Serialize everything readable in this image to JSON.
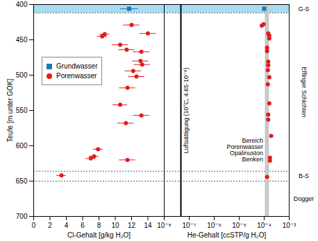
{
  "chart_data": [
    {
      "type": "scatter",
      "x_label": "Cl-Gehalt [g/kg H₂O]",
      "y_label": "Teufe [m unter GOK]",
      "xlim": [
        0,
        16
      ],
      "xticks": [
        0,
        2,
        4,
        6,
        8,
        10,
        12,
        14
      ],
      "ylim": [
        400,
        700
      ],
      "yticks": [
        400,
        450,
        500,
        550,
        600,
        650,
        700
      ],
      "legend": "upper left",
      "series": [
        {
          "name": "Grundwasser",
          "color": "#1f78b4",
          "marker": "square",
          "x": [
            11.7
          ],
          "y": [
            406
          ],
          "xerr": [
            1.1
          ]
        },
        {
          "name": "Porenwasser",
          "color": "#e31a1c",
          "marker": "circle",
          "x": [
            12.0,
            14.0,
            8.7,
            8.4,
            10.6,
            11.4,
            13.2,
            13.1,
            13.3,
            12.2,
            12.6,
            11.5,
            10.6,
            13.2,
            11.3,
            7.9,
            7.4,
            7.0,
            11.5,
            3.4
          ],
          "y": [
            429,
            441,
            442,
            445,
            457,
            464,
            467,
            480,
            485,
            494,
            502,
            518,
            542,
            557,
            568,
            605,
            615,
            618,
            620,
            642
          ],
          "xerr": [
            1.0,
            1.0,
            0.6,
            0.6,
            1.0,
            1.0,
            1.0,
            1.0,
            1.0,
            1.0,
            1.0,
            1.0,
            0.9,
            1.0,
            1.0,
            0.6,
            0.6,
            0.6,
            1.0,
            0.6
          ]
        }
      ]
    },
    {
      "type": "scatter",
      "x_label": "He-Gehalt [ccSTP/g H₂O]",
      "log": "x",
      "xlim": [
        1e-08,
        0.001
      ],
      "xticks": [
        {
          "value": 1e-08,
          "label": "10⁻⁸"
        },
        {
          "value": 1e-07,
          "label": "10⁻⁷"
        },
        {
          "value": 1e-06,
          "label": "10⁻⁶"
        },
        {
          "value": 1e-05,
          "label": "10⁻⁵"
        },
        {
          "value": 0.0001,
          "label": "10⁻⁴"
        },
        {
          "value": 0.001,
          "label": "10⁻³"
        }
      ],
      "ylim": [
        400,
        700
      ],
      "tick_labels": "x",
      "series": [
        {
          "name": "Grundwasser",
          "color": "#1f78b4",
          "marker": "square",
          "x": [
            0.0001
          ],
          "y": [
            406
          ]
        },
        {
          "name": "Porenwasser",
          "color": "#e31a1c",
          "marker": "circle",
          "x": [
            8e-05,
            9.5e-05,
            0.000145,
            0.00016,
            0.00016,
            0.00013,
            0.00013,
            0.000145,
            0.000145,
            0.00014,
            0.00016,
            0.00014,
            0.00016,
            0.000145,
            0.000145,
            0.00019,
            0.00017,
            0.00017,
            0.00013
          ],
          "y": [
            430,
            428,
            441,
            444,
            448,
            461,
            466,
            481,
            486,
            493,
            503,
            513,
            540,
            556,
            563,
            586,
            617,
            621,
            644
          ]
        }
      ],
      "air_saturation": {
        "value": 4.65e-08,
        "label": "Luftsättigung (10°C, 4.65·10⁻⁸)",
        "color": "#000000"
      },
      "band": {
        "from": 0.00011,
        "to": 0.00016,
        "color": "#c8c8c8",
        "label": [
          "Bereich",
          "Porenwasser",
          "Opalinuston",
          "Benken"
        ]
      },
      "zones": [
        {
          "label": "G-S",
          "from": 400,
          "to": 412,
          "color": "#a6dbf2"
        },
        {
          "label": "Effinger Schichten",
          "from": 412,
          "to": 636
        },
        {
          "label": "B-S",
          "from": 636,
          "to": 650
        },
        {
          "label": "Dogger",
          "from": 650,
          "to": 700
        }
      ]
    }
  ]
}
